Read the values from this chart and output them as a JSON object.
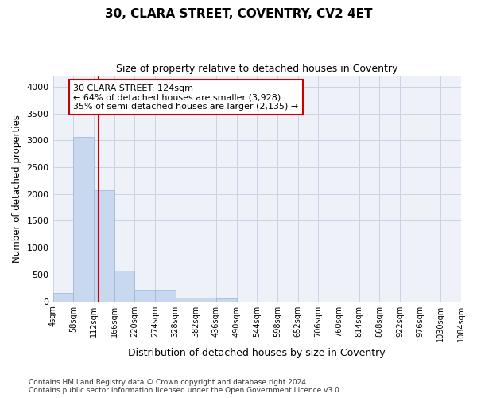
{
  "title": "30, CLARA STREET, COVENTRY, CV2 4ET",
  "subtitle": "Size of property relative to detached houses in Coventry",
  "xlabel": "Distribution of detached houses by size in Coventry",
  "ylabel": "Number of detached properties",
  "property_size": 124,
  "property_label": "30 CLARA STREET: 124sqm",
  "annotation_line1": "← 64% of detached houses are smaller (3,928)",
  "annotation_line2": "35% of semi-detached houses are larger (2,135) →",
  "bar_color": "#c8d8ee",
  "bar_edge_color": "#9ab5d5",
  "redline_color": "#cc0000",
  "annotation_box_color": "#cc0000",
  "grid_color": "#c8d4e8",
  "background_color": "#eef2f8",
  "bins": [
    4,
    58,
    112,
    166,
    220,
    274,
    328,
    382,
    436,
    490,
    544,
    598,
    652,
    706,
    760,
    814,
    868,
    922,
    976,
    1030,
    1084
  ],
  "values": [
    150,
    3060,
    2070,
    570,
    210,
    210,
    75,
    65,
    55,
    0,
    0,
    0,
    0,
    0,
    0,
    0,
    0,
    0,
    0,
    0
  ],
  "ylim": [
    0,
    4200
  ],
  "yticks": [
    0,
    500,
    1000,
    1500,
    2000,
    2500,
    3000,
    3500,
    4000
  ],
  "footnote1": "Contains HM Land Registry data © Crown copyright and database right 2024.",
  "footnote2": "Contains public sector information licensed under the Open Government Licence v3.0."
}
